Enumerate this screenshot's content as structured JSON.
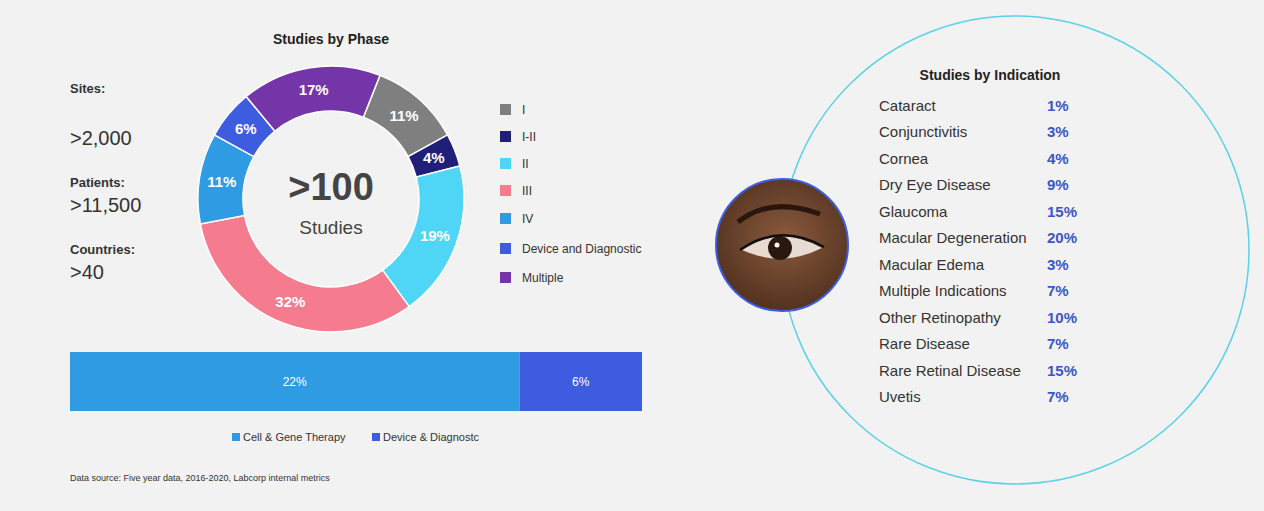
{
  "chart_data": [
    {
      "type": "pie",
      "title": "Studies by Phase",
      "annotations": [
        ">100",
        "Studies"
      ],
      "categories": [
        "I",
        "I-II",
        "II",
        "III",
        "IV",
        "Device and Diagnostic",
        "Multiple"
      ],
      "values": [
        11,
        4,
        19,
        32,
        11,
        6,
        17
      ],
      "value_labels": [
        "11%",
        "4%",
        "19%",
        "32%",
        "11%",
        "6%",
        "17%"
      ],
      "colors": [
        "#7f7f7f",
        "#1f1f7a",
        "#4fd6f7",
        "#f47c8e",
        "#2f9be3",
        "#3d5ce0",
        "#7435a8"
      ],
      "data_labels": true,
      "legend": "right"
    },
    {
      "type": "bar",
      "orientation": "horizontal",
      "stacked": true,
      "categories": [
        null
      ],
      "series": [
        {
          "name": "Cell & Gene Therapy",
          "color": "#2f9be3",
          "values": [
            22
          ],
          "value_labels": [
            "22%"
          ]
        },
        {
          "name": "Device & Diagnostc",
          "color": "#3d5ce0",
          "values": [
            6
          ],
          "value_labels": [
            "6%"
          ]
        }
      ],
      "xlim": [
        0,
        28
      ],
      "tick_labels": false,
      "data_labels": true,
      "legend": "bottom"
    }
  ],
  "stats": [
    {
      "label": "Sites:",
      "value": ">2,000"
    },
    {
      "label": "Patients:",
      "value": ">11,500"
    },
    {
      "label": "Countries:",
      "value": ">40"
    }
  ],
  "indication_table": {
    "title": "Studies by Indication",
    "rows": [
      [
        "Cataract",
        "1%"
      ],
      [
        "Conjunctivitis",
        "3%"
      ],
      [
        "Cornea",
        "4%"
      ],
      [
        "Dry Eye Disease",
        "9%"
      ],
      [
        "Glaucoma",
        "15%"
      ],
      [
        "Macular Degeneration",
        "20%"
      ],
      [
        "Macular Edema",
        "3%"
      ],
      [
        "Multiple Indications",
        "7%"
      ],
      [
        "Other Retinopathy",
        "10%"
      ],
      [
        "Rare Disease",
        "7%"
      ],
      [
        "Rare Retinal Disease",
        "15%"
      ],
      [
        "Uvetis",
        "7%"
      ]
    ]
  },
  "source": "Data source: Five year data, 2016-2020, Labcorp internal metrics"
}
